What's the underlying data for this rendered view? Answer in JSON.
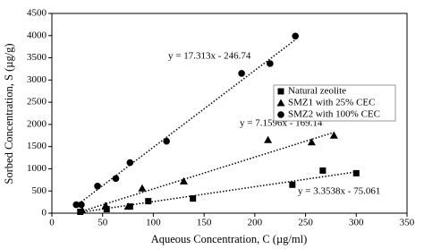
{
  "chart_data": {
    "type": "scatter",
    "xlabel": "Aqueous Concentration, C (µg/ml)",
    "ylabel": "Sorbed Concentration, S (µg/g)",
    "xlim": [
      0,
      350
    ],
    "xticks": [
      0,
      50,
      100,
      150,
      200,
      250,
      300,
      350
    ],
    "ylim": [
      0,
      4500
    ],
    "yticks": [
      0,
      500,
      1000,
      1500,
      2000,
      2500,
      3000,
      3500,
      4000,
      4500
    ],
    "series": [
      {
        "name": "Natural zeolite",
        "color": "#000000",
        "marker": "square",
        "x": [
          28,
          54,
          77,
          95,
          139,
          237,
          267,
          300
        ],
        "values": [
          30,
          90,
          150,
          270,
          330,
          640,
          960,
          900
        ]
      },
      {
        "name": "SMZ1 with 25% CEC",
        "color": "#000000",
        "marker": "triangle",
        "x": [
          30,
          53,
          75,
          89,
          130,
          213,
          256,
          278
        ],
        "values": [
          60,
          170,
          150,
          560,
          720,
          1650,
          1600,
          1750
        ]
      },
      {
        "name": "SMZ2 with 100% CEC",
        "color": "#000000",
        "marker": "circle",
        "x": [
          24,
          29,
          45,
          63,
          77,
          113,
          187,
          215,
          240
        ],
        "values": [
          190,
          190,
          610,
          780,
          1140,
          1620,
          3150,
          3370,
          3990
        ]
      }
    ],
    "trendlines": [
      {
        "slope": 3.3538,
        "intercept": -75.061,
        "label": "y = 3.3538x - 75.061"
      },
      {
        "slope": 7.1596,
        "intercept": -169.14,
        "label": "y = 7.1596x - 169.14"
      },
      {
        "slope": 17.313,
        "intercept": -246.74,
        "label": "y = 17.313x - 246.74"
      }
    ]
  }
}
